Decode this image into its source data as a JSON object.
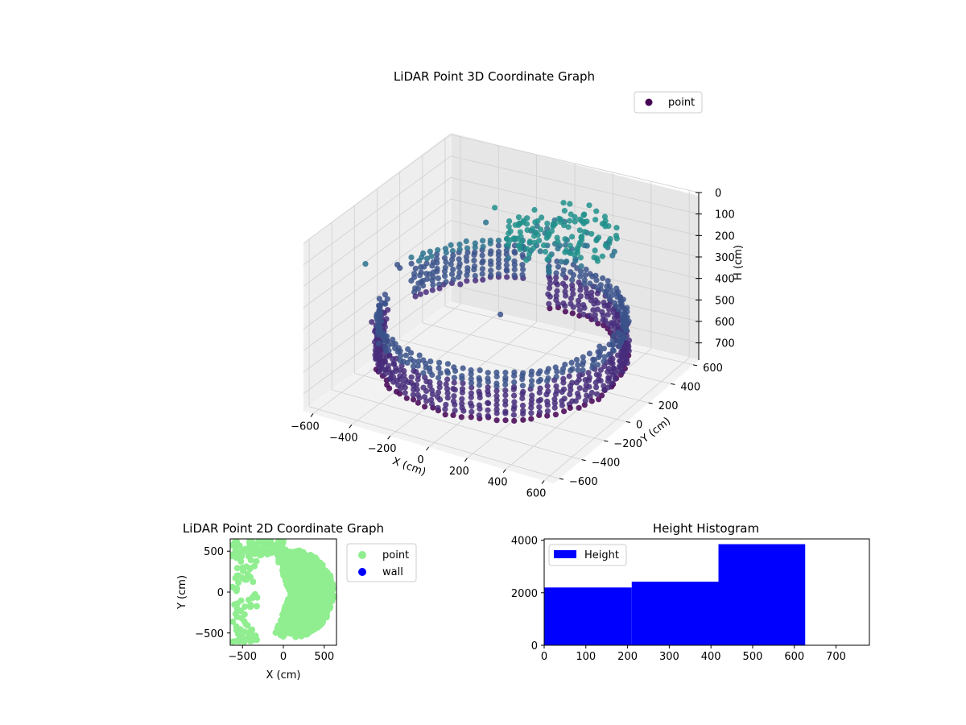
{
  "chart_data": [
    {
      "type": "scatter",
      "title": "LiDAR Point 3D Coordinate Graph",
      "xlabel": "X (cm)",
      "ylabel": "Y (cm)",
      "zlabel": "H (cm)",
      "x_ticks": [
        -600,
        -400,
        -200,
        0,
        200,
        400,
        600
      ],
      "y_ticks": [
        -600,
        -400,
        -200,
        0,
        200,
        400,
        600
      ],
      "z_ticks": [
        0,
        100,
        200,
        300,
        400,
        500,
        600,
        700
      ],
      "xlim": [
        -650,
        650
      ],
      "ylim": [
        -650,
        650
      ],
      "zlim": [
        780,
        0
      ],
      "z_inverted": true,
      "colormap": "viridis",
      "legend": {
        "entries": [
          "point"
        ],
        "position": "top-right"
      },
      "series": [
        {
          "name": "point",
          "color": "#440154",
          "structures": [
            {
              "kind": "wall_arc",
              "radius": 560,
              "angle_deg": [
                -170,
                100
              ],
              "z_range": [
                430,
                660
              ]
            },
            {
              "kind": "wall_arc",
              "radius": 520,
              "angle_deg": [
                110,
                170
              ],
              "z_range": [
                330,
                520
              ]
            },
            {
              "kind": "ceiling_cluster",
              "center": [
                120,
                320
              ],
              "radius": 260,
              "z": 180
            }
          ],
          "outliers": [
            [
              -640,
              -120,
              300
            ],
            [
              -620,
              150,
              420
            ],
            [
              -580,
              60,
              360
            ],
            [
              -560,
              -200,
              520
            ],
            [
              -500,
              240,
              470
            ],
            [
              -330,
              420,
              250
            ],
            [
              -260,
              380,
              150
            ],
            [
              40,
              -80,
              390
            ]
          ]
        }
      ]
    },
    {
      "type": "scatter",
      "title": "LiDAR Point 2D Coordinate Graph",
      "xlabel": "X (cm)",
      "ylabel": "Y (cm)",
      "x_ticks": [
        -500,
        0,
        500
      ],
      "y_ticks": [
        -500,
        0,
        500
      ],
      "xlim": [
        -650,
        650
      ],
      "ylim": [
        -650,
        650
      ],
      "legend": {
        "entries": [
          "point",
          "wall"
        ],
        "position": "outside-right"
      },
      "series": [
        {
          "name": "point",
          "color": "#90ee90",
          "region": {
            "kind": "disc",
            "center": [
              80,
              -20
            ],
            "radius": 540,
            "angle_deg": [
              -110,
              110
            ]
          }
        },
        {
          "name": "wall",
          "color": "#0000ff",
          "points": []
        }
      ]
    },
    {
      "type": "bar",
      "title": "Height Histogram",
      "xlabel": "",
      "ylabel": "",
      "x_ticks": [
        0,
        100,
        200,
        300,
        400,
        500,
        600,
        700
      ],
      "y_ticks": [
        0,
        2000,
        4000
      ],
      "xlim": [
        0,
        780
      ],
      "ylim": [
        0,
        4050
      ],
      "legend": {
        "entries": [
          "Height"
        ],
        "position": "top-left"
      },
      "series": [
        {
          "name": "Height",
          "color": "#0000ff",
          "bins": [
            {
              "start": 0,
              "end": 210,
              "count": 2200
            },
            {
              "start": 210,
              "end": 418,
              "count": 2420
            },
            {
              "start": 418,
              "end": 626,
              "count": 3850
            }
          ]
        }
      ]
    }
  ]
}
